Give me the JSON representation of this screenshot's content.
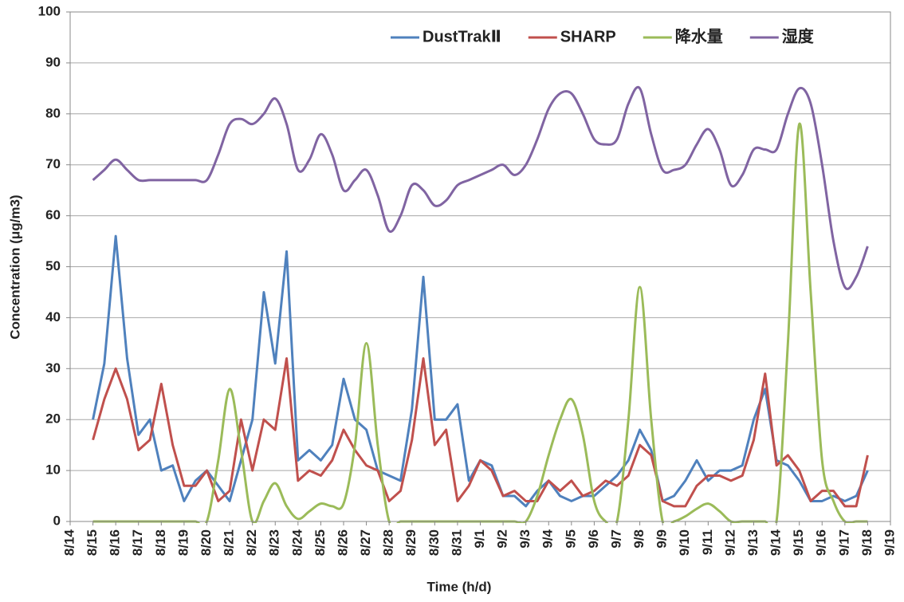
{
  "chart_data": {
    "type": "line",
    "x_label": "Time (h/d)",
    "y_label": "Concentration (μg/m3)",
    "xlim": [
      0,
      36
    ],
    "ylim": [
      0,
      100
    ],
    "yticks": [
      0,
      10,
      20,
      30,
      40,
      50,
      60,
      70,
      80,
      90,
      100
    ],
    "xticks": [
      {
        "value": 0,
        "label": "8/14"
      },
      {
        "value": 1,
        "label": "8/15"
      },
      {
        "value": 2,
        "label": "8/16"
      },
      {
        "value": 3,
        "label": "8/17"
      },
      {
        "value": 4,
        "label": "8/18"
      },
      {
        "value": 5,
        "label": "8/19"
      },
      {
        "value": 6,
        "label": "8/20"
      },
      {
        "value": 7,
        "label": "8/21"
      },
      {
        "value": 8,
        "label": "8/22"
      },
      {
        "value": 9,
        "label": "8/23"
      },
      {
        "value": 10,
        "label": "8/24"
      },
      {
        "value": 11,
        "label": "8/25"
      },
      {
        "value": 12,
        "label": "8/26"
      },
      {
        "value": 13,
        "label": "8/27"
      },
      {
        "value": 14,
        "label": "8/28"
      },
      {
        "value": 15,
        "label": "8/29"
      },
      {
        "value": 16,
        "label": "8/30"
      },
      {
        "value": 17,
        "label": "8/31"
      },
      {
        "value": 18,
        "label": "9/1"
      },
      {
        "value": 19,
        "label": "9/2"
      },
      {
        "value": 20,
        "label": "9/3"
      },
      {
        "value": 21,
        "label": "9/4"
      },
      {
        "value": 22,
        "label": "9/5"
      },
      {
        "value": 23,
        "label": "9/6"
      },
      {
        "value": 24,
        "label": "9/7"
      },
      {
        "value": 25,
        "label": "9/8"
      },
      {
        "value": 26,
        "label": "9/9"
      },
      {
        "value": 27,
        "label": "9/10"
      },
      {
        "value": 28,
        "label": "9/11"
      },
      {
        "value": 29,
        "label": "9/12"
      },
      {
        "value": 30,
        "label": "9/13"
      },
      {
        "value": 31,
        "label": "9/14"
      },
      {
        "value": 32,
        "label": "9/15"
      },
      {
        "value": 33,
        "label": "9/16"
      },
      {
        "value": 34,
        "label": "9/17"
      },
      {
        "value": 35,
        "label": "9/18"
      },
      {
        "value": 36,
        "label": "9/19"
      }
    ],
    "grid": true,
    "legend": "top-right",
    "x": [
      1,
      1.5,
      2,
      2.5,
      3,
      3.5,
      4,
      4.5,
      5,
      5.5,
      6,
      6.5,
      7,
      7.5,
      8,
      8.5,
      9,
      9.5,
      10,
      10.5,
      11,
      11.5,
      12,
      12.5,
      13,
      13.5,
      14,
      14.5,
      15,
      15.5,
      16,
      16.5,
      17,
      17.5,
      18,
      18.5,
      19,
      19.5,
      20,
      20.5,
      21,
      21.5,
      22,
      22.5,
      23,
      23.5,
      24,
      24.5,
      25,
      25.5,
      26,
      26.5,
      27,
      27.5,
      28,
      28.5,
      29,
      29.5,
      30,
      30.5,
      31,
      31.5,
      32,
      32.5,
      33,
      33.5,
      34,
      34.5,
      35
    ],
    "series": [
      {
        "name": "DustTrakⅡ",
        "color": "#4f81bd",
        "smooth": false,
        "values": [
          20,
          31,
          56,
          32,
          17,
          20,
          10,
          11,
          4,
          8,
          10,
          7,
          4,
          12,
          20,
          45,
          31,
          53,
          12,
          14,
          12,
          15,
          28,
          20,
          18,
          10,
          9,
          8,
          22,
          48,
          20,
          20,
          23,
          8,
          12,
          11,
          5,
          5,
          3,
          6,
          8,
          5,
          4,
          5,
          5,
          7,
          9,
          12,
          18,
          14,
          4,
          5,
          8,
          12,
          8,
          10,
          10,
          11,
          20,
          26,
          12,
          11,
          8,
          4,
          4,
          5,
          4,
          5,
          10
        ]
      },
      {
        "name": "SHARP",
        "color": "#c0504d",
        "smooth": false,
        "values": [
          16,
          24,
          30,
          24,
          14,
          16,
          27,
          15,
          7,
          7,
          10,
          4,
          6,
          20,
          10,
          20,
          18,
          32,
          8,
          10,
          9,
          12,
          18,
          14,
          11,
          10,
          4,
          6,
          16,
          32,
          15,
          18,
          4,
          7,
          12,
          10,
          5,
          6,
          4,
          4,
          8,
          6,
          8,
          5,
          6,
          8,
          7,
          9,
          15,
          13,
          4,
          3,
          3,
          7,
          9,
          9,
          8,
          9,
          16,
          29,
          11,
          13,
          10,
          4,
          6,
          6,
          3,
          3,
          13
        ]
      },
      {
        "name": "降水量",
        "color": "#9bbb59",
        "smooth": true,
        "values": [
          0,
          0,
          0,
          0,
          0,
          0,
          0,
          0,
          0,
          0,
          0,
          12,
          26,
          14,
          0,
          4,
          7.5,
          3,
          0.5,
          2,
          3.5,
          3,
          3.5,
          15,
          35,
          15,
          0,
          0,
          0,
          0,
          0,
          0,
          0,
          0,
          0,
          0,
          0,
          0,
          0,
          5,
          13,
          20,
          24,
          17,
          4,
          0,
          0,
          20,
          46,
          20,
          0,
          0,
          1,
          2.5,
          3.5,
          2,
          0,
          0,
          0,
          0,
          0,
          35,
          78,
          45,
          12,
          4,
          0,
          0,
          0
        ]
      },
      {
        "name": "湿度",
        "color": "#8064a2",
        "smooth": true,
        "values": [
          67,
          69,
          71,
          69,
          67,
          67,
          67,
          67,
          67,
          67,
          67,
          72,
          78,
          79,
          78,
          80,
          83,
          78,
          69,
          71,
          76,
          72,
          65,
          67,
          69,
          64,
          57,
          60,
          66,
          65,
          62,
          63,
          66,
          67,
          68,
          69,
          70,
          68,
          70,
          75,
          81,
          84,
          84,
          80,
          75,
          74,
          75,
          82,
          85,
          76,
          69,
          69,
          70,
          74,
          77,
          73,
          66,
          68,
          73,
          73,
          73,
          80,
          85,
          82,
          70,
          55,
          46,
          48,
          54
        ]
      }
    ]
  }
}
